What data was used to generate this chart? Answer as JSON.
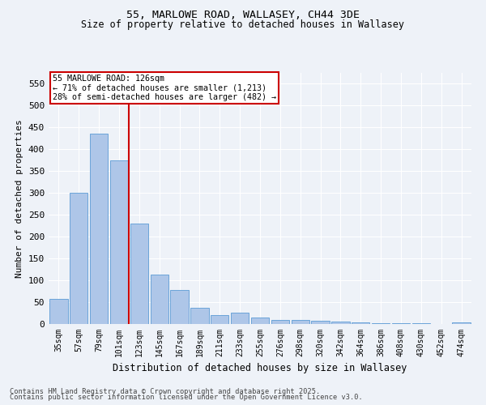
{
  "title1": "55, MARLOWE ROAD, WALLASEY, CH44 3DE",
  "title2": "Size of property relative to detached houses in Wallasey",
  "xlabel": "Distribution of detached houses by size in Wallasey",
  "ylabel": "Number of detached properties",
  "bar_labels": [
    "35sqm",
    "57sqm",
    "79sqm",
    "101sqm",
    "123sqm",
    "145sqm",
    "167sqm",
    "189sqm",
    "211sqm",
    "233sqm",
    "255sqm",
    "276sqm",
    "298sqm",
    "320sqm",
    "342sqm",
    "364sqm",
    "386sqm",
    "408sqm",
    "430sqm",
    "452sqm",
    "474sqm"
  ],
  "bar_values": [
    57,
    300,
    435,
    375,
    230,
    113,
    78,
    37,
    20,
    26,
    15,
    10,
    10,
    8,
    5,
    4,
    2,
    1,
    1,
    0,
    3
  ],
  "bar_color": "#aec6e8",
  "bar_edge_color": "#5b9bd5",
  "vline_x_idx": 4,
  "vline_color": "#cc0000",
  "annotation_text": "55 MARLOWE ROAD: 126sqm\n← 71% of detached houses are smaller (1,213)\n28% of semi-detached houses are larger (482) →",
  "annotation_box_color": "#ffffff",
  "annotation_box_edge": "#cc0000",
  "ylim": [
    0,
    575
  ],
  "yticks": [
    0,
    50,
    100,
    150,
    200,
    250,
    300,
    350,
    400,
    450,
    500,
    550
  ],
  "bg_color": "#eef2f8",
  "grid_color": "#ffffff",
  "footer1": "Contains HM Land Registry data © Crown copyright and database right 2025.",
  "footer2": "Contains public sector information licensed under the Open Government Licence v3.0."
}
